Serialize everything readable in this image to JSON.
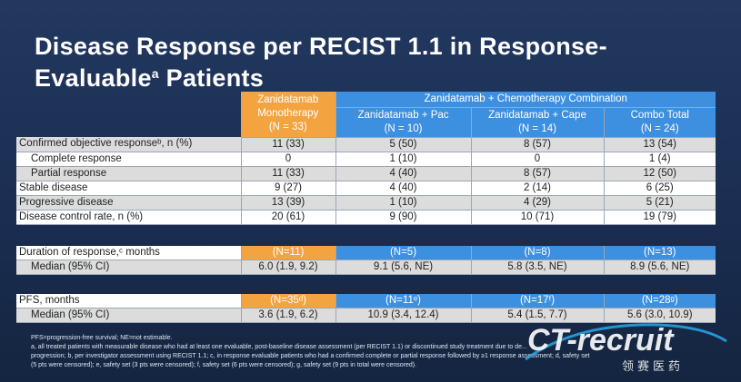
{
  "slide": {
    "title_main": "Disease Response per RECIST 1.1 in Response-",
    "title_line2": "Evaluable",
    "title_sup": "a",
    "title_end": " Patients"
  },
  "table": {
    "mono_header": [
      "Zanidatamab",
      "Monotherapy",
      "(N = 33)"
    ],
    "combo_span": "Zanidatamab + Chemotherapy Combination",
    "sub_headers": [
      [
        "Zanidatamab + Pac",
        "(N = 10)"
      ],
      [
        "Zanidatamab + Cape",
        "(N = 14)"
      ],
      [
        "Combo Total",
        "(N = 24)"
      ]
    ],
    "rows": [
      {
        "label": "Confirmed objective responseᵇ, n (%)",
        "indent": false,
        "vals": [
          "11 (33)",
          "5 (50)",
          "8 (57)",
          "13 (54)"
        ]
      },
      {
        "label": "Complete response",
        "indent": true,
        "vals": [
          "0",
          "1 (10)",
          "0",
          "1 (4)"
        ]
      },
      {
        "label": "Partial response",
        "indent": true,
        "vals": [
          "11 (33)",
          "4 (40)",
          "8 (57)",
          "12 (50)"
        ]
      },
      {
        "label": "Stable disease",
        "indent": false,
        "vals": [
          "9 (27)",
          "4 (40)",
          "2 (14)",
          "6 (25)"
        ]
      },
      {
        "label": "Progressive disease",
        "indent": false,
        "vals": [
          "13 (39)",
          "1 (10)",
          "4 (29)",
          "5 (21)"
        ]
      },
      {
        "label": "Disease control rate, n (%)",
        "indent": false,
        "vals": [
          "20 (61)",
          "9 (90)",
          "10 (71)",
          "19 (79)"
        ]
      }
    ],
    "dor": {
      "label": "Duration of response,ᶜ months",
      "ns": [
        "(N=11)",
        "(N=5)",
        "(N=8)",
        "(N=13)"
      ],
      "median_label": "Median (95% CI)",
      "medians": [
        "6.0 (1.9, 9.2)",
        "9.1 (5.6, NE)",
        "5.8 (3.5, NE)",
        "8.9 (5.6, NE)"
      ]
    },
    "pfs": {
      "label": "PFS, months",
      "ns": [
        "(N=35ᵈ)",
        "(N=11ᵉ)",
        "(N=17ᶠ)",
        "(N=28ᵍ)"
      ],
      "median_label": "Median (95% CI)",
      "medians": [
        "3.6 (1.9, 6.2)",
        "10.9 (3.4, 12.4)",
        "5.4 (1.5, 7.7)",
        "5.6 (3.0, 10.9)"
      ]
    }
  },
  "footnotes": [
    "PFS=progression-free survival; NE=not estimable.",
    "a, all treated patients with measurable disease who had at least one evaluable, post-baseline disease assessment (per RECIST 1.1) or discontinued study treatment due to de...",
    "progression; b, per investigator assessment using RECIST 1.1; c, in response evaluable patients who had a confirmed complete or partial response followed by ≥1 response assessment; d, safety set",
    "(5 pts were censored); e, safety set (3 pts were censored); f, safety set (6 pts were censored); g, safety set (9 pts in total were censored)."
  ],
  "watermark": {
    "brand": "CT-recruit",
    "sub": "领赛医药",
    "brand_color": "#ffffff",
    "accent": "#2aa7e8"
  },
  "colors": {
    "mono_header": "#f3a440",
    "combo_header": "#3d8fe0",
    "background": "#1b2e52"
  }
}
